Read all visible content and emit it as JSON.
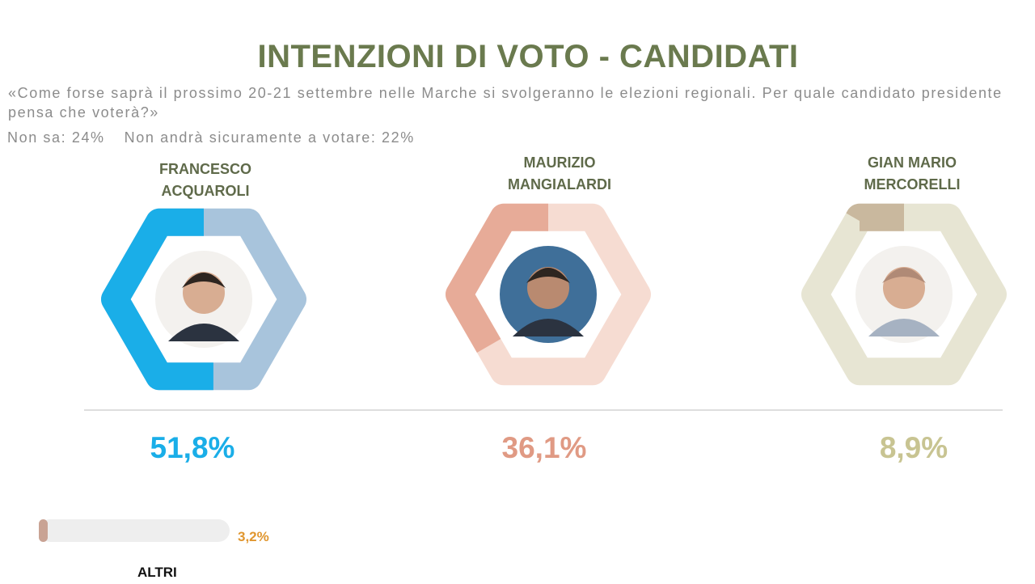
{
  "title": "INTENZIONI DI VOTO - CANDIDATI",
  "question": "«Come forse saprà il prossimo 20-21 settembre nelle Marche si svolgeranno le elezioni regionali. Per quale candidato presidente pensa che voterà?»",
  "stats": {
    "non_sa": "Non sa: 24%",
    "non_votera": "Non andrà sicuramente a votare: 22%"
  },
  "candidates": [
    {
      "name": "FRANCESCO\nACQUAROLI",
      "value_label": "51,8%",
      "color": "#1aaee8",
      "track_color": "#a8c4dc"
    },
    {
      "name": "MAURIZIO\nMANGIALARDI",
      "value_label": "36,1%",
      "color": "#e7ab98",
      "track_color": "#f6dcd2"
    },
    {
      "name": "GIAN MARIO\nMERCORELLI",
      "value_label": "8,9%",
      "color": "#c9b89e",
      "track_color": "#e7e5d3"
    }
  ],
  "others": {
    "label": "ALTRI",
    "value_label": "3,2%",
    "color": "#c9a394"
  },
  "chart_data": {
    "type": "pie",
    "title": "INTENZIONI DI VOTO - CANDIDATI",
    "categories": [
      "FRANCESCO ACQUAROLI",
      "MAURIZIO MANGIALARDI",
      "GIAN MARIO MERCORELLI",
      "ALTRI"
    ],
    "values": [
      51.8,
      36.1,
      8.9,
      3.2
    ],
    "unit": "%"
  }
}
